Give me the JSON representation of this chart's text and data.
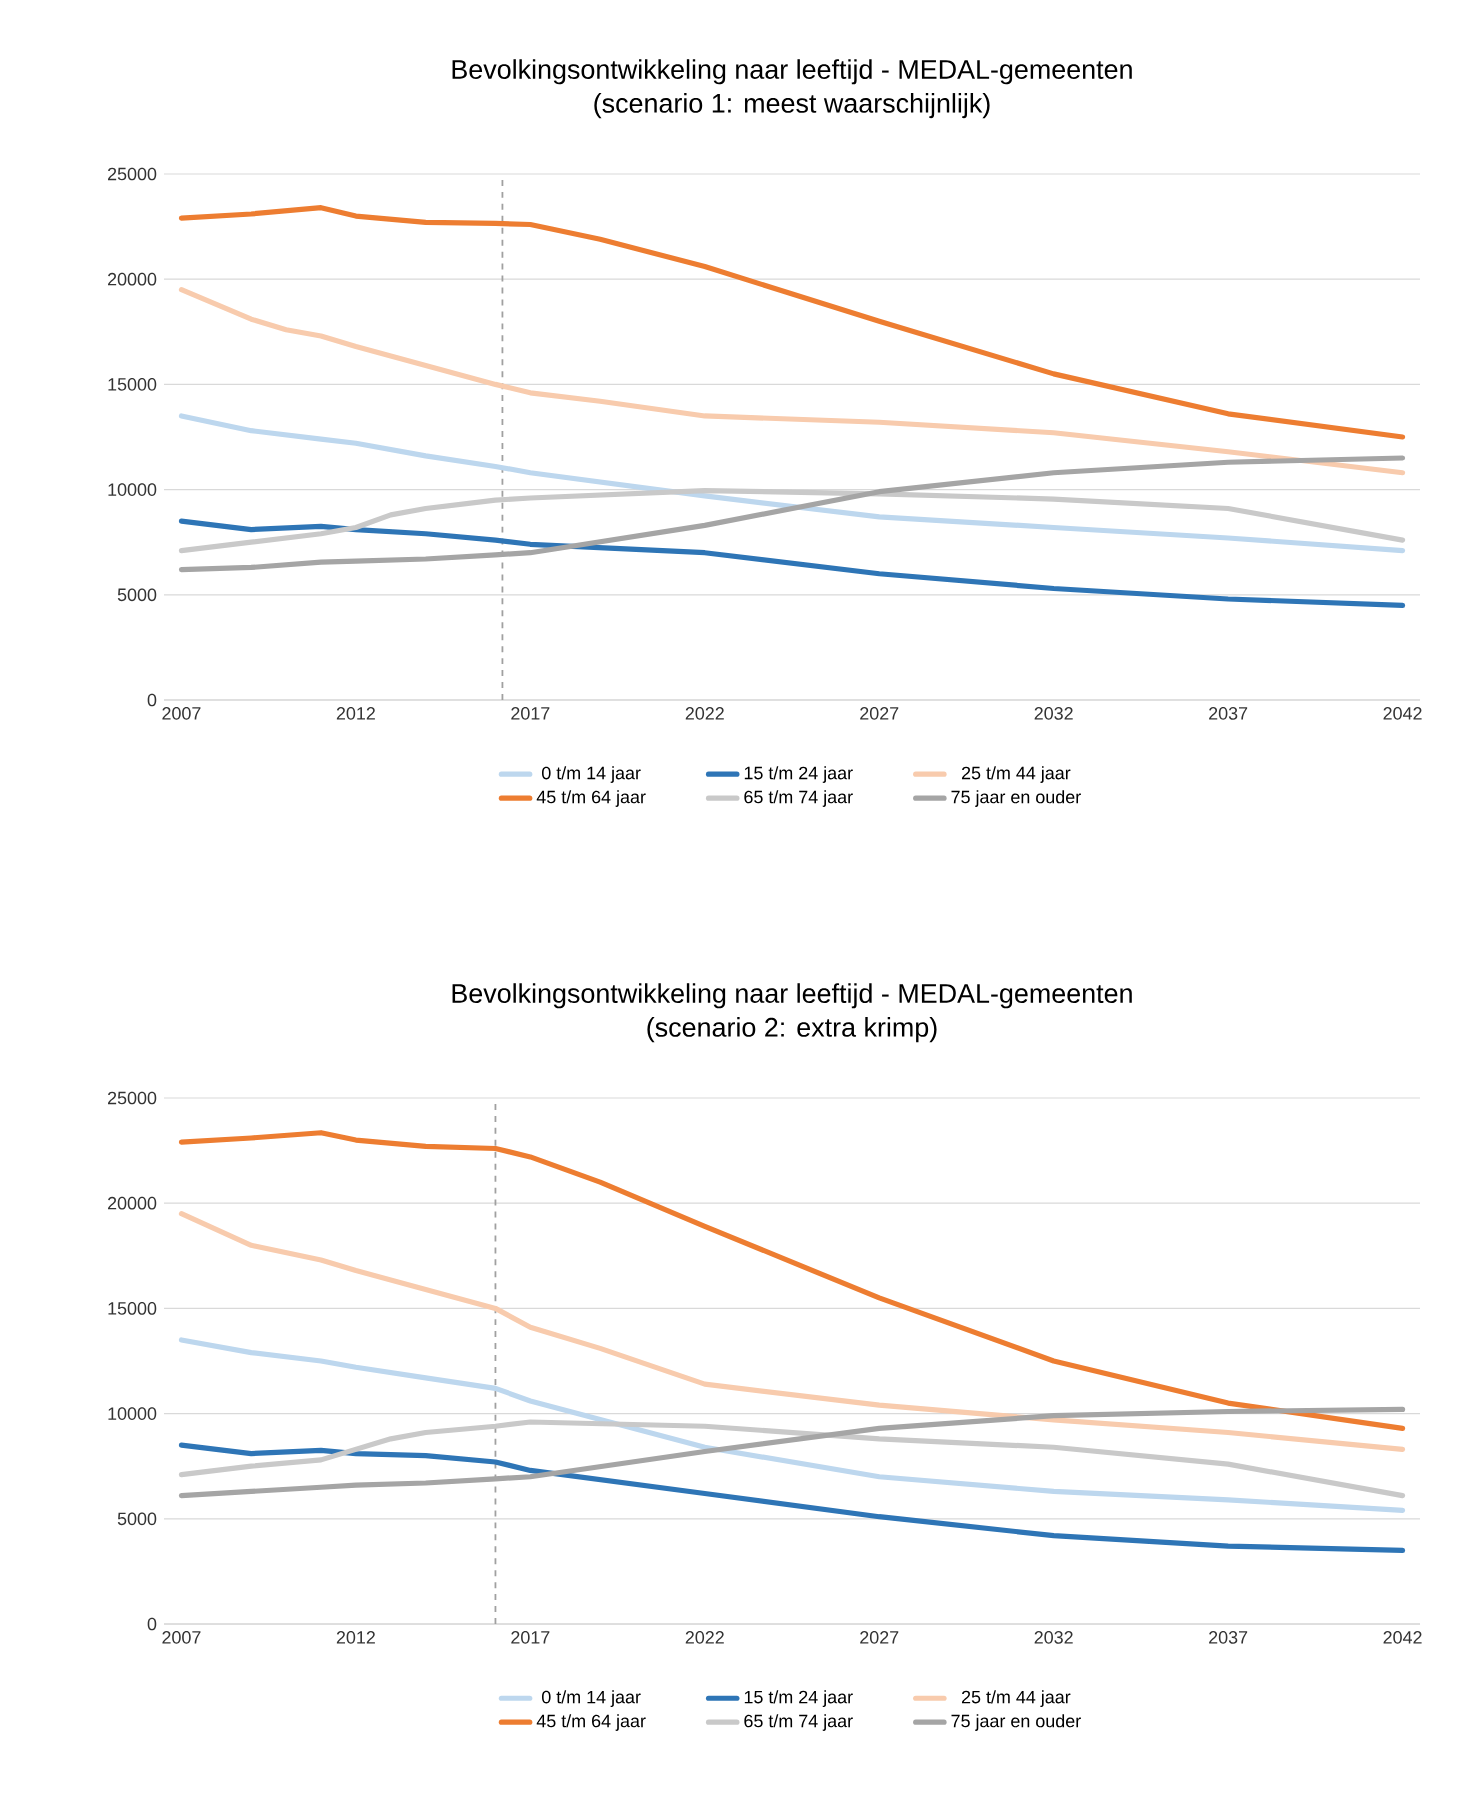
{
  "chart_data": [
    {
      "type": "line",
      "title": "Bevolkingsontwikkeling naar leeftijd - MEDAL-gemeenten",
      "subtitle": "(scenario 1: meest waarschijnlijk)",
      "xlim": [
        2006.5,
        2042.5
      ],
      "xticks": [
        2007,
        2012,
        2017,
        2022,
        2027,
        2032,
        2037,
        2042
      ],
      "ylim": [
        0,
        25000
      ],
      "yticks": [
        0,
        5000,
        10000,
        15000,
        20000,
        25000
      ],
      "grid": "y",
      "legend": "bottom",
      "marker": "none",
      "line_style": "solid",
      "ref_lines": [
        {
          "axis": "x",
          "value": 2016.2,
          "color": "#a0a0a0",
          "line_style": "dashed"
        }
      ],
      "series": [
        {
          "name": "0 t/m 14 jaar",
          "color": "#bdd7ee",
          "x": [
            2007,
            2009,
            2011,
            2012,
            2014,
            2016,
            2017,
            2022,
            2027,
            2032,
            2037,
            2042
          ],
          "values": [
            13500,
            12800,
            12400,
            12200,
            11600,
            11100,
            10800,
            9700,
            8700,
            8200,
            7700,
            7100
          ]
        },
        {
          "name": "15 t/m 24 jaar",
          "color": "#2e75b6",
          "x": [
            2007,
            2009,
            2011,
            2012,
            2014,
            2016,
            2017,
            2022,
            2027,
            2032,
            2037,
            2042
          ],
          "values": [
            8500,
            8100,
            8250,
            8100,
            7900,
            7600,
            7400,
            7000,
            6000,
            5300,
            4800,
            4500
          ]
        },
        {
          "name": "25 t/m 44 jaar",
          "color": "#f8cbad",
          "x": [
            2007,
            2009,
            2010,
            2011,
            2012,
            2014,
            2016,
            2017,
            2019,
            2022,
            2027,
            2032,
            2037,
            2042
          ],
          "values": [
            19500,
            18100,
            17600,
            17300,
            16800,
            15900,
            15000,
            14600,
            14200,
            13500,
            13200,
            12700,
            11800,
            10800
          ]
        },
        {
          "name": "45 t/m 64 jaar",
          "color": "#ed7d31",
          "x": [
            2007,
            2009,
            2011,
            2012,
            2014,
            2016,
            2017,
            2019,
            2022,
            2027,
            2032,
            2037,
            2042
          ],
          "values": [
            22900,
            23100,
            23400,
            23000,
            22700,
            22650,
            22600,
            21900,
            20600,
            18000,
            15500,
            13600,
            12500
          ]
        },
        {
          "name": "65 t/m 74 jaar",
          "color": "#c9c9c9",
          "x": [
            2007,
            2009,
            2011,
            2012,
            2013,
            2014,
            2016,
            2017,
            2022,
            2027,
            2032,
            2037,
            2042
          ],
          "values": [
            7100,
            7500,
            7900,
            8200,
            8800,
            9100,
            9500,
            9600,
            9950,
            9800,
            9550,
            9100,
            7600
          ]
        },
        {
          "name": "75 jaar en ouder",
          "color": "#a5a5a5",
          "x": [
            2007,
            2009,
            2011,
            2012,
            2014,
            2016,
            2017,
            2022,
            2027,
            2032,
            2037,
            2042
          ],
          "values": [
            6200,
            6300,
            6550,
            6600,
            6700,
            6900,
            7000,
            8300,
            9900,
            10800,
            11300,
            11500
          ]
        }
      ]
    },
    {
      "type": "line",
      "title": "Bevolkingsontwikkeling naar leeftijd - MEDAL-gemeenten",
      "subtitle": "(scenario 2: extra krimp)",
      "xlim": [
        2006.5,
        2042.5
      ],
      "xticks": [
        2007,
        2012,
        2017,
        2022,
        2027,
        2032,
        2037,
        2042
      ],
      "ylim": [
        0,
        25000
      ],
      "yticks": [
        0,
        5000,
        10000,
        15000,
        20000,
        25000
      ],
      "grid": "y",
      "legend": "bottom",
      "marker": "none",
      "line_style": "solid",
      "ref_lines": [
        {
          "axis": "x",
          "value": 2016,
          "color": "#a0a0a0",
          "line_style": "dashed"
        }
      ],
      "series": [
        {
          "name": "0 t/m 14 jaar",
          "color": "#bdd7ee",
          "x": [
            2007,
            2009,
            2011,
            2012,
            2014,
            2016,
            2017,
            2022,
            2027,
            2032,
            2037,
            2042
          ],
          "values": [
            13500,
            12900,
            12500,
            12200,
            11700,
            11200,
            10600,
            8400,
            7000,
            6300,
            5900,
            5400
          ]
        },
        {
          "name": "15 t/m 24 jaar",
          "color": "#2e75b6",
          "x": [
            2007,
            2009,
            2011,
            2012,
            2014,
            2016,
            2017,
            2022,
            2027,
            2032,
            2037,
            2042
          ],
          "values": [
            8500,
            8100,
            8250,
            8100,
            8000,
            7700,
            7300,
            6200,
            5100,
            4200,
            3700,
            3500
          ]
        },
        {
          "name": "25 t/m 44 jaar",
          "color": "#f8cbad",
          "x": [
            2007,
            2009,
            2011,
            2012,
            2014,
            2016,
            2017,
            2019,
            2022,
            2027,
            2032,
            2037,
            2042
          ],
          "values": [
            19500,
            18000,
            17300,
            16800,
            15900,
            15000,
            14100,
            13100,
            11400,
            10400,
            9700,
            9100,
            8300
          ]
        },
        {
          "name": "45 t/m 64 jaar",
          "color": "#ed7d31",
          "x": [
            2007,
            2009,
            2011,
            2012,
            2014,
            2016,
            2017,
            2019,
            2022,
            2027,
            2032,
            2037,
            2042
          ],
          "values": [
            22900,
            23100,
            23350,
            23000,
            22700,
            22600,
            22200,
            21000,
            18900,
            15500,
            12500,
            10500,
            9300
          ]
        },
        {
          "name": "65 t/m 74 jaar",
          "color": "#c9c9c9",
          "x": [
            2007,
            2009,
            2011,
            2012,
            2013,
            2014,
            2016,
            2017,
            2022,
            2027,
            2032,
            2037,
            2042
          ],
          "values": [
            7100,
            7500,
            7800,
            8300,
            8800,
            9100,
            9400,
            9600,
            9400,
            8800,
            8400,
            7600,
            6100
          ]
        },
        {
          "name": "75 jaar en ouder",
          "color": "#a5a5a5",
          "x": [
            2007,
            2009,
            2011,
            2012,
            2014,
            2016,
            2017,
            2022,
            2027,
            2032,
            2037,
            2042
          ],
          "values": [
            6100,
            6300,
            6500,
            6600,
            6700,
            6900,
            7000,
            8200,
            9300,
            9900,
            10100,
            10200
          ]
        }
      ]
    }
  ]
}
